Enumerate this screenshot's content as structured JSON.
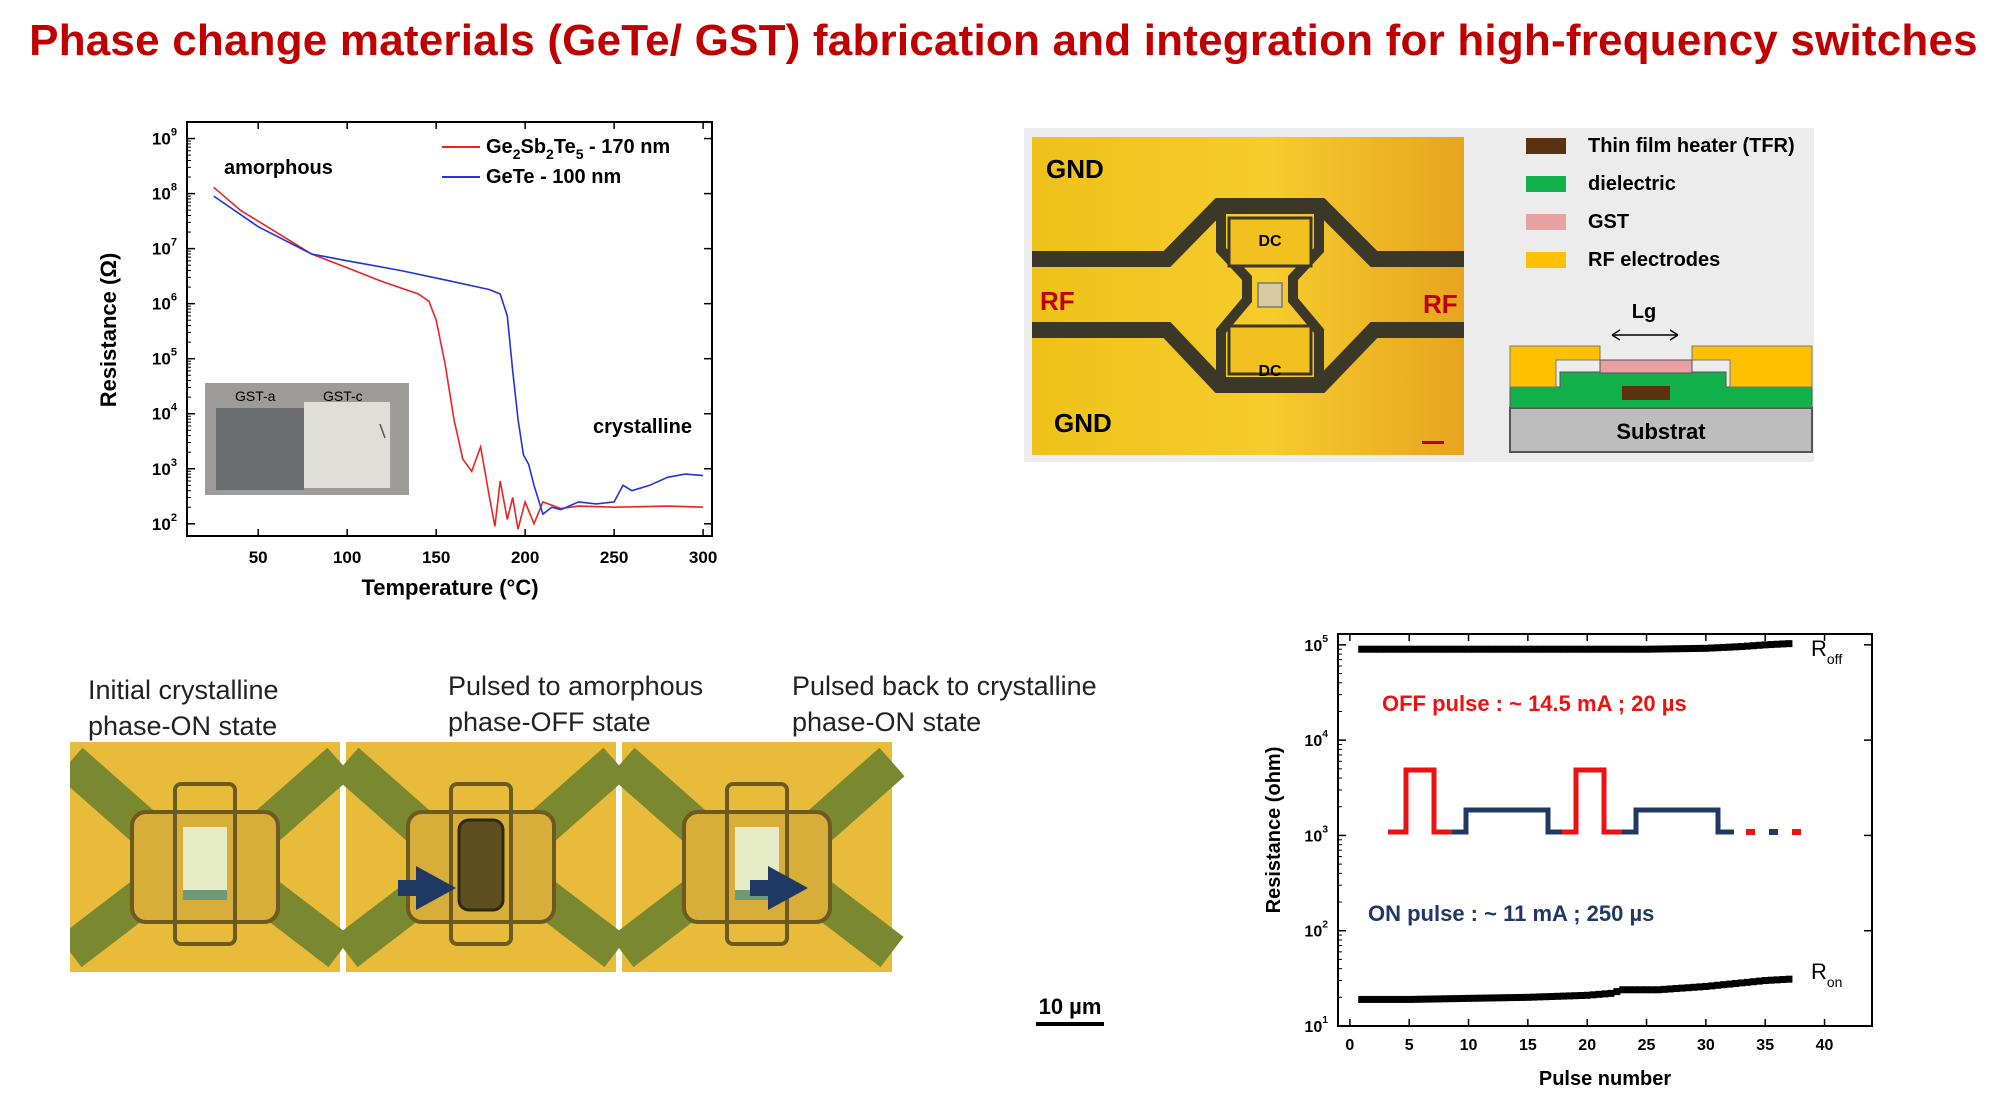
{
  "title": "Phase change materials (GeTe/ GST) fabrication and integration for high-frequency switches",
  "chart_data": [
    {
      "type": "line",
      "xlabel": "Temperature (°C)",
      "ylabel": "Resistance (Ω)",
      "y_scale": "log",
      "xlim": [
        10,
        305
      ],
      "ylim": [
        60,
        2000000000
      ],
      "x_ticks": [
        "50",
        "100",
        "150",
        "200",
        "250",
        "300"
      ],
      "y_ticks": [
        "10^2",
        "10^3",
        "10^4",
        "10^5",
        "10^6",
        "10^7",
        "10^8",
        "10^9"
      ],
      "annotations": [
        "amorphous",
        "crystalline"
      ],
      "legend_position": "top-right",
      "series": [
        {
          "name": "Ge2Sb2Te5 - 170 nm",
          "color": "#ee2222",
          "x": [
            25,
            40,
            60,
            80,
            100,
            120,
            140,
            146,
            150,
            155,
            160,
            165,
            170,
            175,
            180,
            183,
            186,
            190,
            193,
            196,
            200,
            205,
            210,
            220,
            230,
            250,
            280,
            300
          ],
          "y": [
            130000000,
            50000000,
            20000000,
            8000000,
            4500000,
            2500000,
            1500000,
            1100000,
            500000,
            80000,
            8000,
            1500,
            900,
            2500,
            300,
            90,
            600,
            120,
            300,
            80,
            250,
            100,
            250,
            190,
            210,
            200,
            210,
            200
          ]
        },
        {
          "name": "GeTe - 100 nm",
          "color": "#2233dd",
          "x": [
            25,
            50,
            80,
            100,
            130,
            160,
            180,
            186,
            190,
            193,
            196,
            199,
            202,
            205,
            210,
            215,
            220,
            230,
            240,
            250,
            255,
            260,
            270,
            280,
            290,
            300
          ],
          "y": [
            90000000,
            25000000,
            8000000,
            6000000,
            4000000,
            2500000,
            1800000,
            1500000,
            600000,
            60000,
            8000,
            1800,
            1200,
            500,
            150,
            200,
            180,
            250,
            230,
            250,
            500,
            400,
            500,
            700,
            800,
            750
          ]
        }
      ]
    },
    {
      "type": "line",
      "xlabel": "Pulse number",
      "ylabel": "Resistance (ohm)",
      "y_scale": "log",
      "xlim": [
        -1,
        44
      ],
      "ylim": [
        10,
        130000
      ],
      "x_ticks": [
        "0",
        "5",
        "10",
        "15",
        "20",
        "25",
        "30",
        "35",
        "40"
      ],
      "y_ticks": [
        "10^1",
        "10^2",
        "10^3",
        "10^4",
        "10^5"
      ],
      "annotations": [
        "OFF pulse : ~ 14.5 mA ; 20 µs",
        "ON pulse : ~ 11 mA ; 250 µs"
      ],
      "series": [
        {
          "name": "R_off",
          "color": "#000000",
          "x": [
            1,
            5,
            10,
            15,
            20,
            25,
            30,
            33,
            35,
            37
          ],
          "y": [
            90000,
            90000,
            90000,
            90000,
            90000,
            90000,
            92000,
            96000,
            100000,
            103000
          ]
        },
        {
          "name": "R_on",
          "color": "#000000",
          "x": [
            1,
            5,
            10,
            15,
            20,
            22,
            23,
            26,
            30,
            35,
            37
          ],
          "y": [
            19,
            19,
            19.5,
            20,
            21,
            22,
            24,
            24,
            26,
            30,
            31
          ]
        }
      ]
    }
  ],
  "chart1": {
    "legend": [
      {
        "main": "Ge",
        "s1": "2",
        "m2": "Sb",
        "s2": "2",
        "m3": "Te",
        "s3": "5",
        "tail": " - 170 nm"
      },
      {
        "text": "GeTe - 100 nm"
      }
    ],
    "inset_labels": [
      "GST-a",
      "GST-c"
    ]
  },
  "device": {
    "labels": {
      "gnd_top": "GND",
      "gnd_bottom": "GND",
      "rf_left": "RF",
      "rf_right": "RF",
      "dc_top": "DC",
      "dc_bottom": "DC"
    },
    "legend": [
      {
        "label": "Thin film heater (TFR)",
        "color": "#5a3210"
      },
      {
        "label": "dielectric",
        "color": "#12b04a"
      },
      {
        "label": "GST",
        "color": "#e8a0a0"
      },
      {
        "label": "RF electrodes",
        "color": "#ffc000"
      }
    ],
    "lg_label": "Lg",
    "substrate_label": "Substrat"
  },
  "micro": {
    "captions": [
      "Initial crystalline\nphase-ON state",
      "Pulsed to amorphous\nphase-OFF state",
      "Pulsed back to crystalline\nphase-ON state"
    ],
    "scale_bar": "10 µm"
  },
  "chart2": {
    "r_off": {
      "main": "R",
      "sub": "off"
    },
    "r_on": {
      "main": "R",
      "sub": "on"
    }
  }
}
